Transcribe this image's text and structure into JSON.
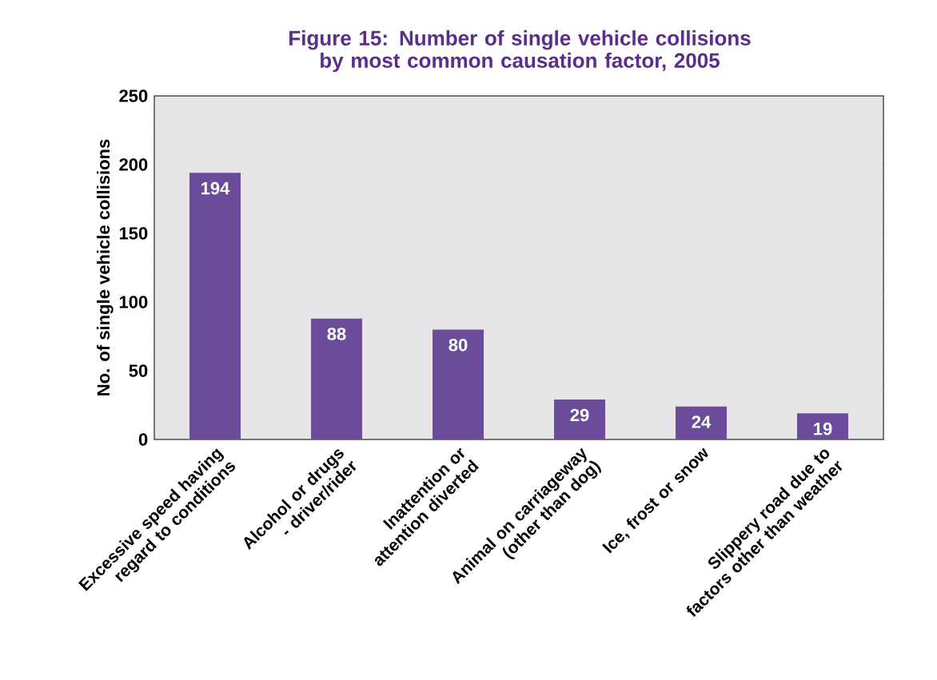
{
  "chart_data": {
    "type": "bar",
    "title": "Figure 15: Number of single vehicle collisions by most common causation factor, 2005",
    "ylabel": "No. of single vehicle collisions",
    "categories": [
      "Excessive speed having regard to conditions",
      "Alcohol or drugs - driver/rider",
      "Inattention or attention diverted",
      "Animal on carriageway (other than dog)",
      "Ice, frost or snow",
      "Slippery road due to factors other than weather"
    ],
    "values": [
      194,
      88,
      80,
      29,
      24,
      19
    ],
    "color": "#6b4c9a",
    "ylim": [
      0,
      250
    ],
    "yticks": [
      0,
      50,
      100,
      150,
      200,
      250
    ],
    "data_labels": true,
    "grid": false
  }
}
